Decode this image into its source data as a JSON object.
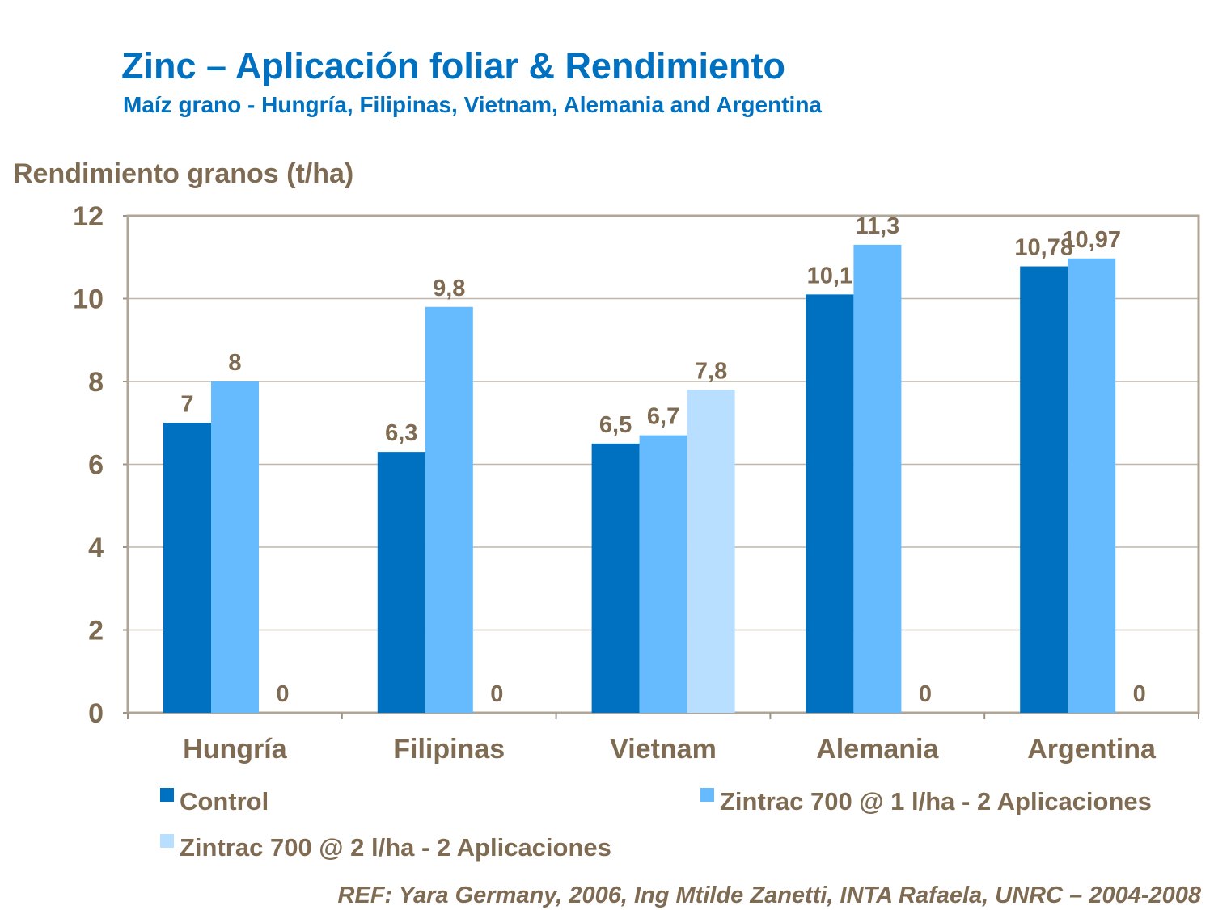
{
  "chart_data": {
    "type": "bar",
    "title": "Zinc – Aplicación foliar & Rendimiento",
    "subtitle": "Maíz grano - Hungría, Filipinas, Vietnam, Alemania and Argentina",
    "xlabel": "",
    "ylabel": "Rendimiento granos (t/ha)",
    "ylim": [
      0,
      12
    ],
    "yticks": [
      0,
      2,
      4,
      6,
      8,
      10,
      12
    ],
    "grid": true,
    "legend_position": "bottom",
    "categories": [
      "Hungría",
      "Filipinas",
      "Vietnam",
      "Alemania",
      "Argentina"
    ],
    "series": [
      {
        "name": "Control",
        "color": "#0070C0",
        "values": [
          7,
          6.3,
          6.5,
          10.1,
          10.78
        ],
        "labels": [
          "7",
          "6,3",
          "6,5",
          "10,1",
          "10,78"
        ]
      },
      {
        "name": "Zintrac 700 @ 1 l/ha - 2 Aplicaciones",
        "color": "#66BBFF",
        "values": [
          8,
          9.8,
          6.7,
          11.3,
          10.97
        ],
        "labels": [
          "8",
          "9,8",
          "6,7",
          "11,3",
          "10,97"
        ]
      },
      {
        "name": "Zintrac 700 @ 2 l/ha - 2 Aplicaciones",
        "color": "#B8DFFF",
        "values": [
          0,
          0,
          7.8,
          0,
          0
        ],
        "labels": [
          "0",
          "0",
          "7,8",
          "0",
          "0"
        ]
      }
    ],
    "reference": "REF: Yara Germany, 2006, Ing Mtilde Zanetti, INTA Rafaela, UNRC – 2004-2008"
  }
}
